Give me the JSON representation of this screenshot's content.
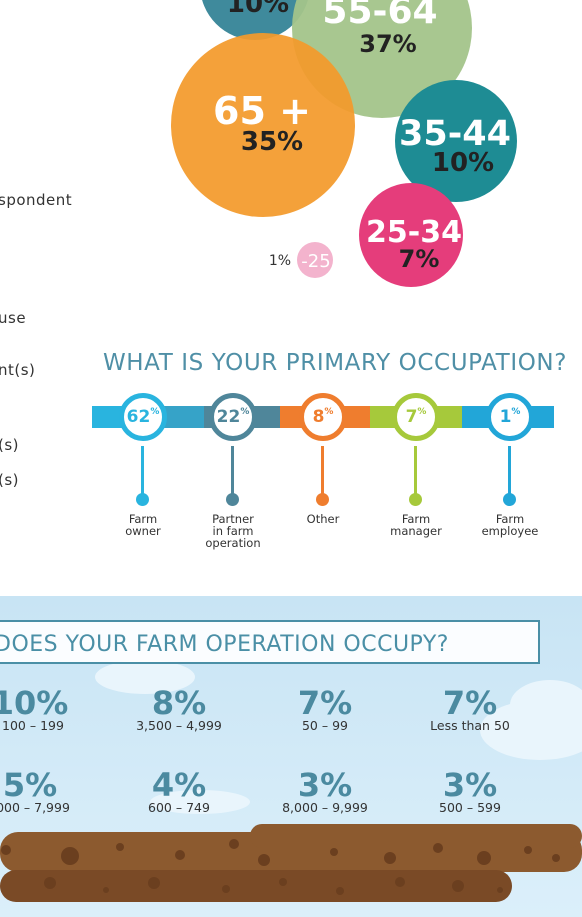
{
  "age_chart": {
    "bubbles": [
      {
        "label": "10%",
        "pct": "",
        "color": "#3f8a9c"
      },
      {
        "label": "55-64",
        "pct": "37%",
        "color": "#a3c48a"
      },
      {
        "label": "65 +",
        "pct": "35%",
        "color": "#f39a2b"
      },
      {
        "label": "35-44",
        "pct": "10%",
        "color": "#1e8c94"
      },
      {
        "label": "25-34",
        "pct": "7%",
        "color": "#e53d7b"
      },
      {
        "label": "-25",
        "pct": "1%",
        "color": "#f3b3cd"
      }
    ]
  },
  "left_fragments": [
    "spondent",
    "use",
    "nt(s)",
    "(s)",
    "(s)"
  ],
  "occupation": {
    "title": "WHAT IS YOUR PRIMARY OCCUPATION?",
    "items": [
      {
        "value": "62",
        "unit": "%",
        "label_lines": [
          "Farm",
          "owner"
        ],
        "color": "#29b4df"
      },
      {
        "value": "22",
        "unit": "%",
        "label_lines": [
          "Partner",
          "in farm",
          "operation"
        ],
        "color": "#4f869a"
      },
      {
        "value": "8",
        "unit": "%",
        "label_lines": [
          "Other"
        ],
        "color": "#ef7d2e"
      },
      {
        "value": "7",
        "unit": "%",
        "label_lines": [
          "Farm",
          "manager"
        ],
        "color": "#a6c93b"
      },
      {
        "value": "1",
        "unit": "%",
        "label_lines": [
          "Farm",
          "employee"
        ],
        "color": "#22a6d8"
      }
    ]
  },
  "acres": {
    "title": "DOES YOUR FARM OPERATION OCCUPY?",
    "row1": [
      {
        "pct": "10%",
        "range": "100 – 199"
      },
      {
        "pct": "8%",
        "range": "3,500 – 4,999"
      },
      {
        "pct": "7%",
        "range": "50 – 99"
      },
      {
        "pct": "7%",
        "range": "Less than 50"
      }
    ],
    "row2": [
      {
        "pct": "5%",
        "range": "000 – 7,999"
      },
      {
        "pct": "4%",
        "range": "600 – 749"
      },
      {
        "pct": "3%",
        "range": "8,000 – 9,999"
      },
      {
        "pct": "3%",
        "range": "500 – 599"
      }
    ]
  },
  "chart_data": [
    {
      "type": "bubble",
      "categories": [
        "-25",
        "25-34",
        "35-44",
        "55-64",
        "65 +"
      ],
      "values": [
        1,
        7,
        10,
        37,
        35
      ]
    },
    {
      "type": "bar",
      "title": "WHAT IS YOUR PRIMARY OCCUPATION?",
      "categories": [
        "Farm owner",
        "Partner in farm operation",
        "Other",
        "Farm manager",
        "Farm employee"
      ],
      "values": [
        62,
        22,
        8,
        7,
        1
      ]
    }
  ]
}
